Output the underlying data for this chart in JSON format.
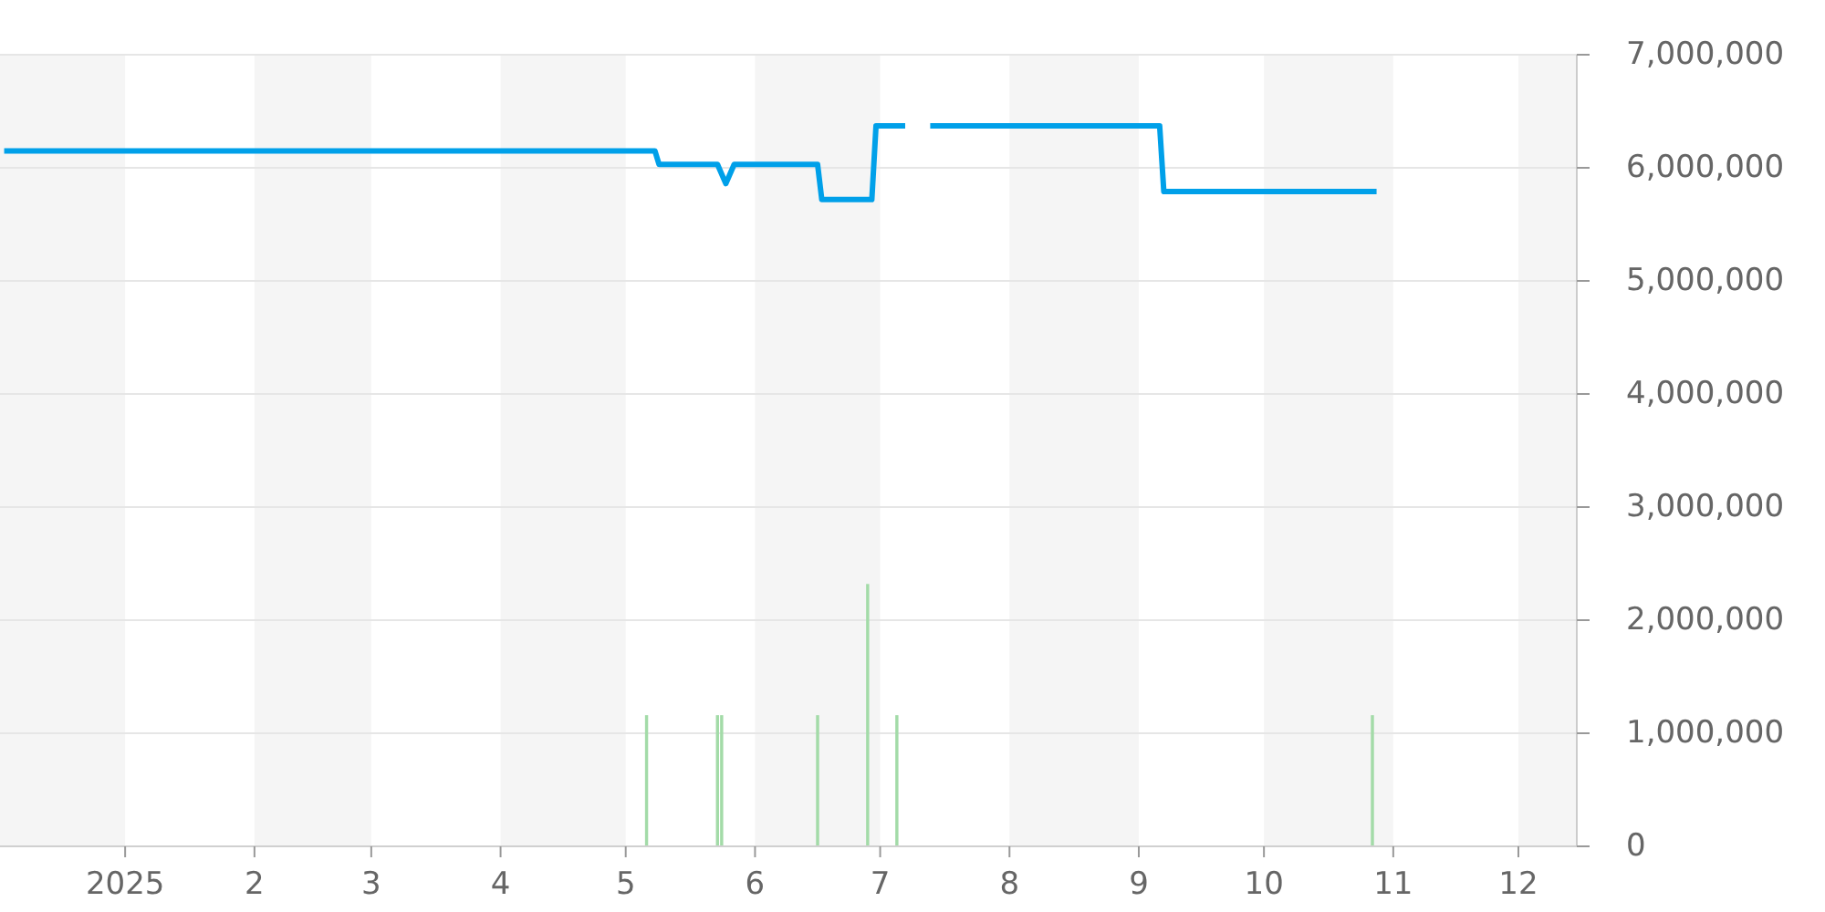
{
  "chart_data": {
    "type": "line",
    "xlim": [
      "2024-12-02",
      "2025-12-15"
    ],
    "xticks": [
      {
        "value": "2025-01-01",
        "label": "2025"
      },
      {
        "value": "2025-02-01",
        "label": "2"
      },
      {
        "value": "2025-03-01",
        "label": "3"
      },
      {
        "value": "2025-04-01",
        "label": "4"
      },
      {
        "value": "2025-05-01",
        "label": "5"
      },
      {
        "value": "2025-06-01",
        "label": "6"
      },
      {
        "value": "2025-07-01",
        "label": "7"
      },
      {
        "value": "2025-08-01",
        "label": "8"
      },
      {
        "value": "2025-09-01",
        "label": "9"
      },
      {
        "value": "2025-10-01",
        "label": "10"
      },
      {
        "value": "2025-11-01",
        "label": "11"
      },
      {
        "value": "2025-12-01",
        "label": "12"
      }
    ],
    "ylim": [
      0,
      7000000
    ],
    "yticks": [
      0,
      {
        "value": 1000000,
        "label": "1,000,000"
      },
      {
        "value": 2000000,
        "label": "2,000,000"
      },
      {
        "value": 3000000,
        "label": "3,000,000"
      },
      {
        "value": 4000000,
        "label": "4,000,000"
      },
      {
        "value": 5000000,
        "label": "5,000,000"
      },
      {
        "value": 6000000,
        "label": "6,000,000"
      },
      {
        "value": 7000000,
        "label": "7,000,000"
      }
    ],
    "grid": "y",
    "bands": [
      {
        "axis": "x",
        "from": "2024-12-02",
        "to": "2025-01-01",
        "color": "#f5f5f5"
      },
      {
        "axis": "x",
        "from": "2025-02-01",
        "to": "2025-03-01",
        "color": "#f5f5f5"
      },
      {
        "axis": "x",
        "from": "2025-04-01",
        "to": "2025-05-01",
        "color": "#f5f5f5"
      },
      {
        "axis": "x",
        "from": "2025-06-01",
        "to": "2025-07-01",
        "color": "#f5f5f5"
      },
      {
        "axis": "x",
        "from": "2025-08-01",
        "to": "2025-09-01",
        "color": "#f5f5f5"
      },
      {
        "axis": "x",
        "from": "2025-10-01",
        "to": "2025-11-01",
        "color": "#f5f5f5"
      },
      {
        "axis": "x",
        "from": "2025-12-01",
        "to": "2025-12-15",
        "color": "#f5f5f5"
      }
    ],
    "series": [
      {
        "type": "bar",
        "color": "#a3dba8",
        "x": [
          "2025-05-06",
          "2025-05-23",
          "2025-05-24",
          "2025-06-16",
          "2025-06-28",
          "2025-07-05",
          "2025-10-27"
        ],
        "values": [
          1160000,
          1160000,
          1160000,
          1160000,
          2320000,
          1160000,
          1160000
        ]
      },
      {
        "color": "#00a0e9",
        "x": [
          "2024-12-03",
          "2025-05-08",
          "2025-05-09",
          "2025-05-23",
          "2025-05-25",
          "2025-05-27",
          "2025-06-16",
          "2025-06-17",
          "2025-06-29",
          "2025-06-30",
          "2025-07-07",
          "2025-07-10",
          "2025-07-13",
          "2025-09-06",
          "2025-09-07",
          "2025-10-28"
        ],
        "values": [
          6150000,
          6150000,
          6030000,
          6030000,
          5860000,
          6030000,
          6030000,
          5720000,
          5720000,
          6370000,
          6370000,
          null,
          6370000,
          6370000,
          5790000,
          5790000
        ]
      }
    ]
  }
}
